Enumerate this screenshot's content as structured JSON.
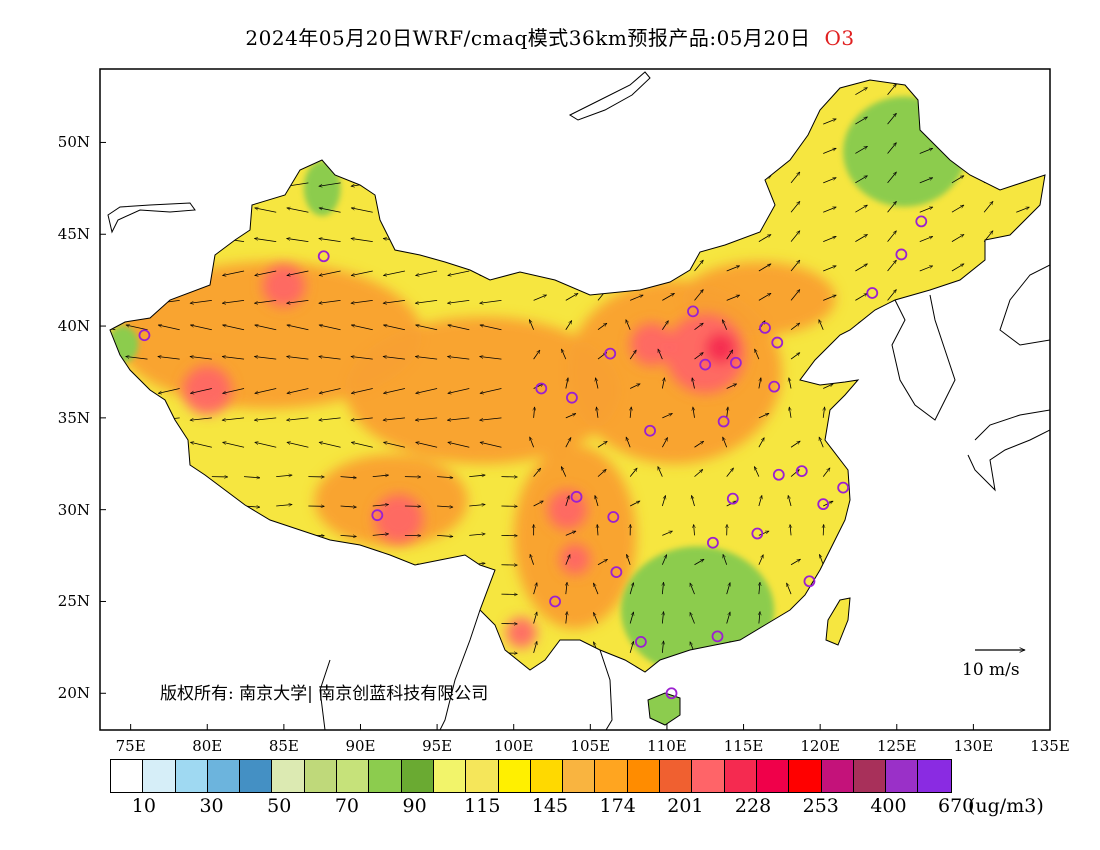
{
  "title": {
    "main": "2024年05月20日WRF/cmaq模式36km预报产品:05月20日",
    "species": "O3",
    "species_color": "#e02020"
  },
  "axes": {
    "lat_labels": [
      "50N",
      "45N",
      "40N",
      "35N",
      "30N",
      "25N",
      "20N"
    ],
    "lon_labels": [
      "75E",
      "80E",
      "85E",
      "90E",
      "95E",
      "100E",
      "105E",
      "110E",
      "115E",
      "120E",
      "125E",
      "130E",
      "135E"
    ],
    "lon_range": [
      73,
      135
    ],
    "lat_range": [
      18,
      54
    ]
  },
  "copyright": "版权所有: 南京大学| 南京创蓝科技有限公司",
  "wind_key": "10 m/s",
  "colorbar": {
    "colors": [
      "#ffffff",
      "#d6eef8",
      "#9fd9f2",
      "#6cb4dd",
      "#4490c4",
      "#dceab2",
      "#bfd97a",
      "#c6e27a",
      "#8ccc4e",
      "#6aaa32",
      "#f2f46a",
      "#f5e65a",
      "#fff000",
      "#ffd900",
      "#f9b440",
      "#ffa520",
      "#ff8c00",
      "#f06030",
      "#ff6468",
      "#f52a50",
      "#f0004a",
      "#ff0000",
      "#c4127a",
      "#a8305a",
      "#9a30c8",
      "#8a2be2"
    ],
    "labels": [
      "10",
      "30",
      "50",
      "70",
      "90",
      "115",
      "145",
      "174",
      "201",
      "228",
      "253",
      "400",
      "670"
    ],
    "units": "(ug/m3)"
  },
  "stations": [
    {
      "lon": 87.6,
      "lat": 43.8
    },
    {
      "lon": 126.6,
      "lat": 45.7
    },
    {
      "lon": 125.3,
      "lat": 43.9
    },
    {
      "lon": 123.4,
      "lat": 41.8
    },
    {
      "lon": 111.7,
      "lat": 40.8
    },
    {
      "lon": 116.4,
      "lat": 39.9
    },
    {
      "lon": 117.2,
      "lat": 39.1
    },
    {
      "lon": 114.5,
      "lat": 38.0
    },
    {
      "lon": 112.5,
      "lat": 37.9
    },
    {
      "lon": 106.3,
      "lat": 38.5
    },
    {
      "lon": 101.8,
      "lat": 36.6
    },
    {
      "lon": 103.8,
      "lat": 36.1
    },
    {
      "lon": 117.0,
      "lat": 36.7
    },
    {
      "lon": 113.7,
      "lat": 34.8
    },
    {
      "lon": 108.9,
      "lat": 34.3
    },
    {
      "lon": 118.8,
      "lat": 32.1
    },
    {
      "lon": 117.3,
      "lat": 31.9
    },
    {
      "lon": 121.5,
      "lat": 31.2
    },
    {
      "lon": 120.2,
      "lat": 30.3
    },
    {
      "lon": 114.3,
      "lat": 30.6
    },
    {
      "lon": 104.1,
      "lat": 30.7
    },
    {
      "lon": 106.5,
      "lat": 29.6
    },
    {
      "lon": 91.1,
      "lat": 29.7
    },
    {
      "lon": 115.9,
      "lat": 28.7
    },
    {
      "lon": 113.0,
      "lat": 28.2
    },
    {
      "lon": 106.7,
      "lat": 26.6
    },
    {
      "lon": 119.3,
      "lat": 26.1
    },
    {
      "lon": 102.7,
      "lat": 25.0
    },
    {
      "lon": 108.3,
      "lat": 22.8
    },
    {
      "lon": 113.3,
      "lat": 23.1
    },
    {
      "lon": 110.3,
      "lat": 20.0
    },
    {
      "lon": 75.9,
      "lat": 39.5
    }
  ],
  "hotspots": [
    {
      "lon": 112.5,
      "lat": 38.5,
      "level": "#ff6468",
      "r": 2.6
    },
    {
      "lon": 113.5,
      "lat": 38.8,
      "level": "#f52a50",
      "r": 1.0
    },
    {
      "lon": 109.0,
      "lat": 39.0,
      "level": "#ff6468",
      "r": 1.4
    },
    {
      "lon": 103.5,
      "lat": 30.0,
      "level": "#ff6468",
      "r": 1.3
    },
    {
      "lon": 104.0,
      "lat": 27.3,
      "level": "#ff6468",
      "r": 1.0
    },
    {
      "lon": 92.5,
      "lat": 29.5,
      "level": "#ff6468",
      "r": 1.6
    },
    {
      "lon": 80.0,
      "lat": 36.5,
      "level": "#ff6468",
      "r": 1.6
    },
    {
      "lon": 85.0,
      "lat": 42.2,
      "level": "#ff6468",
      "r": 1.4
    },
    {
      "lon": 100.5,
      "lat": 23.3,
      "level": "#ff6468",
      "r": 1.0
    }
  ],
  "orange_zones": [
    {
      "lon": 110.5,
      "lat": 37.5,
      "rx": 7,
      "ry": 5
    },
    {
      "lon": 104.0,
      "lat": 28.5,
      "rx": 4,
      "ry": 5
    },
    {
      "lon": 98.0,
      "lat": 36.5,
      "rx": 9,
      "ry": 4
    },
    {
      "lon": 84.0,
      "lat": 39.5,
      "rx": 10,
      "ry": 4
    },
    {
      "lon": 92.0,
      "lat": 30.5,
      "rx": 5,
      "ry": 2.5
    },
    {
      "lon": 116.0,
      "lat": 41.5,
      "rx": 5,
      "ry": 2
    }
  ],
  "green_zones": [
    {
      "lon": 112.0,
      "lat": 24.5,
      "rx": 5,
      "ry": 3.5
    },
    {
      "lon": 125.5,
      "lat": 49.5,
      "rx": 4,
      "ry": 3
    },
    {
      "lon": 109.5,
      "lat": 19.5,
      "rx": 1.2,
      "ry": 1
    },
    {
      "lon": 87.5,
      "lat": 47.5,
      "rx": 1.2,
      "ry": 1.5
    },
    {
      "lon": 74.5,
      "lat": 39.0,
      "rx": 1,
      "ry": 1
    }
  ]
}
